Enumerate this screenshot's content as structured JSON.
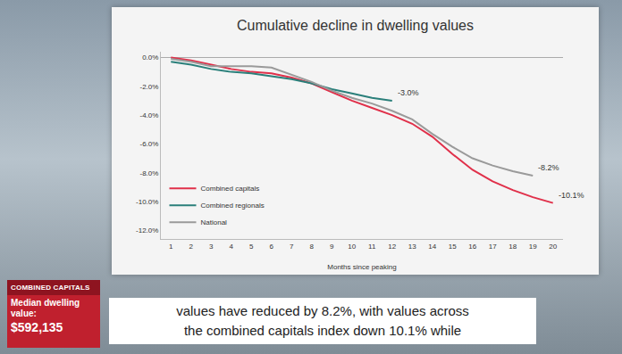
{
  "chart_data": {
    "type": "line",
    "title": "Cumulative decline in dwelling values",
    "xlabel": "Months since peaking",
    "x": [
      1,
      2,
      3,
      4,
      5,
      6,
      7,
      8,
      9,
      10,
      11,
      12,
      13,
      14,
      15,
      16,
      17,
      18,
      19,
      20
    ],
    "series": [
      {
        "name": "Combined capitals",
        "color": "#e0304a",
        "values": [
          0.0,
          -0.2,
          -0.5,
          -0.8,
          -1.0,
          -1.1,
          -1.4,
          -1.8,
          -2.4,
          -3.0,
          -3.5,
          -4.0,
          -4.6,
          -5.5,
          -6.7,
          -7.8,
          -8.6,
          -9.2,
          -9.7,
          -10.1
        ]
      },
      {
        "name": "Combined regionals",
        "color": "#2a7f7a",
        "values": [
          -0.3,
          -0.5,
          -0.8,
          -1.0,
          -1.1,
          -1.3,
          -1.5,
          -1.8,
          -2.2,
          -2.5,
          -2.8,
          -3.0,
          null,
          null,
          null,
          null,
          null,
          null,
          null,
          null
        ]
      },
      {
        "name": "National",
        "color": "#9a9a9a",
        "values": [
          -0.1,
          -0.3,
          -0.6,
          -0.6,
          -0.6,
          -0.7,
          -1.2,
          -1.7,
          -2.3,
          -2.8,
          -3.2,
          -3.7,
          -4.3,
          -5.3,
          -6.2,
          -7.0,
          -7.5,
          -7.9,
          -8.2,
          null
        ]
      }
    ],
    "xlim": [
      0.5,
      20.5
    ],
    "xticks": [
      1,
      2,
      3,
      4,
      5,
      6,
      7,
      8,
      9,
      10,
      11,
      12,
      13,
      14,
      15,
      16,
      17,
      18,
      19,
      20
    ],
    "ylim": [
      -12.6,
      0.4
    ],
    "yticks": [
      {
        "value": 0,
        "label": "0.0%"
      },
      {
        "value": -2,
        "label": "-2.0%"
      },
      {
        "value": -4,
        "label": "-4.0%"
      },
      {
        "value": -6,
        "label": "-6.0%"
      },
      {
        "value": -8,
        "label": "-8.0%"
      },
      {
        "value": -10,
        "label": "-10.0%"
      },
      {
        "value": -12,
        "label": "-12.0%"
      }
    ],
    "grid": false,
    "legend": "bottom left",
    "annotations": [
      {
        "text": "-3.0%",
        "x": 12,
        "y": -3.0
      },
      {
        "text": "-8.2%",
        "x": 19,
        "y": -8.2
      },
      {
        "text": "-10.1%",
        "x": 20,
        "y": -10.1
      }
    ]
  },
  "banner": {
    "heading": "COMBINED CAPITALS",
    "label": "Median dwelling value:",
    "value": "$592,135"
  },
  "caption": [
    "values have reduced by 8.2%, with values across",
    "the combined capitals index down 10.1% while"
  ]
}
